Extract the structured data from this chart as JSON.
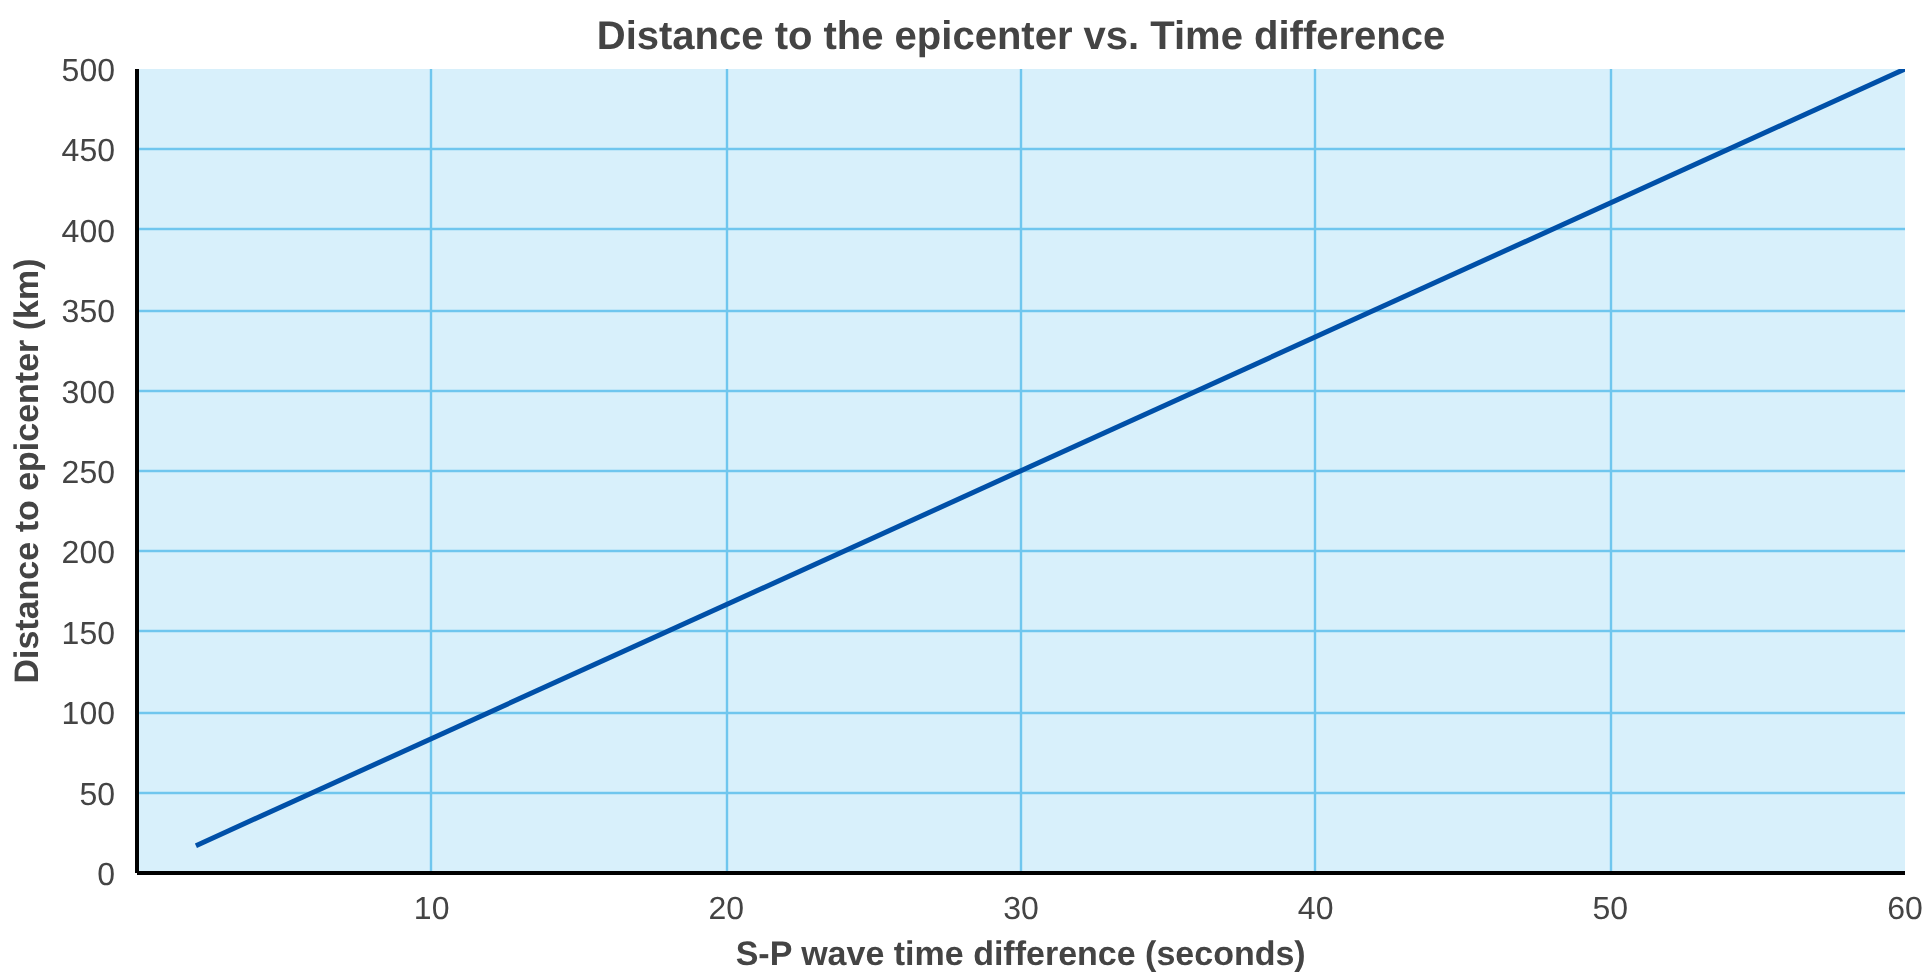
{
  "chart_data": {
    "type": "line",
    "title": "Distance to the epicenter vs. Time difference",
    "xlabel": "S-P wave time difference (seconds)",
    "ylabel": "Distance to epicenter (km)",
    "x": [
      2,
      60
    ],
    "series": [
      {
        "color": "#0050a8",
        "values": [
          17,
          500
        ]
      }
    ],
    "xlim": [
      0,
      60
    ],
    "xticks": [
      10,
      20,
      30,
      40,
      50,
      60
    ],
    "ylim": [
      0,
      500
    ],
    "yticks": [
      0,
      50,
      100,
      150,
      200,
      250,
      300,
      350,
      400,
      450,
      500
    ],
    "grid": true,
    "line_style": "solid",
    "marker": "none"
  }
}
